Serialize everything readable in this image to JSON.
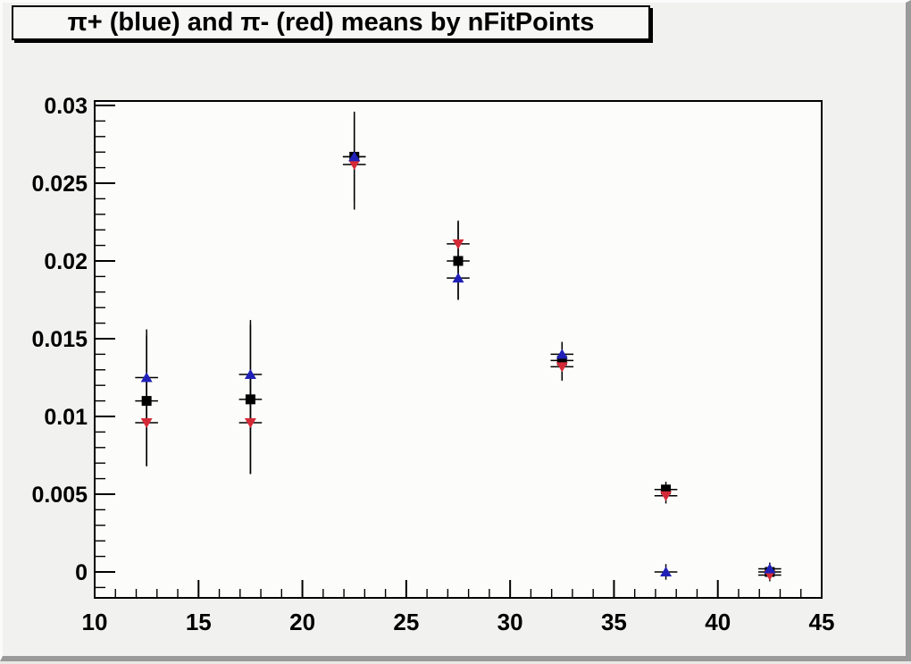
{
  "window": {
    "background": "#f1f1ef",
    "bevel_light": "#fbfbfb",
    "bevel_dark": "#9a9a9a"
  },
  "title": "π+ (blue) and π- (red) means by nFitPoints",
  "chart_data": {
    "type": "scatter",
    "title": "π+ (blue) and π- (red) means by nFitPoints",
    "xlabel": "",
    "ylabel": "",
    "xlim": [
      10,
      45
    ],
    "ylim": [
      -0.001667,
      0.030287
    ],
    "x_major_ticks": [
      10,
      15,
      20,
      25,
      30,
      35,
      40,
      45
    ],
    "x_tick_labels": [
      "10",
      "15",
      "20",
      "25",
      "30",
      "35",
      "40",
      "45"
    ],
    "x_minor_step": 1,
    "y_major_ticks": [
      0,
      0.005,
      0.01,
      0.015,
      0.02,
      0.025,
      0.03
    ],
    "y_tick_labels": [
      "0",
      "0.005",
      "0.01",
      "0.015",
      "0.02",
      "0.025",
      "0.03"
    ],
    "y_minor_step": 0.001,
    "grid": false,
    "legend": "none (colors named in title)",
    "frame_fill": "#fcfcfa",
    "frame_stroke": "#000000",
    "error_bar_color": "#000000",
    "x_error": 0.55,
    "series": [
      {
        "name": "mean (black squares)",
        "marker": "square",
        "color": "#000000",
        "points": [
          {
            "x": 12.5,
            "y": 0.011,
            "ey": 0.0042
          },
          {
            "x": 17.5,
            "y": 0.0111,
            "ey": 0.0048
          },
          {
            "x": 22.5,
            "y": 0.0267,
            "ey": 0.0029
          },
          {
            "x": 27.5,
            "y": 0.02,
            "ey": 0.0025
          },
          {
            "x": 32.5,
            "y": 0.0136,
            "ey": 0.0012
          },
          {
            "x": 37.5,
            "y": 0.0053,
            "ey": 0.0005
          },
          {
            "x": 42.5,
            "y": 0.0,
            "ey": 0.0004
          }
        ]
      },
      {
        "name": "pi-minus (red down-triangles)",
        "marker": "triangle-down",
        "color": "#d42a38",
        "points": [
          {
            "x": 12.5,
            "y": 0.0096,
            "ey": 0.0028
          },
          {
            "x": 17.5,
            "y": 0.0096,
            "ey": 0.0033
          },
          {
            "x": 22.5,
            "y": 0.0262,
            "ey": 0.0029
          },
          {
            "x": 27.5,
            "y": 0.0211,
            "ey": 0.0015
          },
          {
            "x": 32.5,
            "y": 0.0132,
            "ey": 0.0009
          },
          {
            "x": 37.5,
            "y": 0.0049,
            "ey": 0.0005
          },
          {
            "x": 42.5,
            "y": -0.0002,
            "ey": 0.0004
          }
        ]
      },
      {
        "name": "pi-plus (blue up-triangles)",
        "marker": "triangle-up",
        "color": "#2020b8",
        "points": [
          {
            "x": 12.5,
            "y": 0.0125,
            "ey": 0.0031
          },
          {
            "x": 17.5,
            "y": 0.0127,
            "ey": 0.0035
          },
          {
            "x": 22.5,
            "y": 0.0267,
            "ey": 0.0028
          },
          {
            "x": 27.5,
            "y": 0.0189,
            "ey": 0.0014
          },
          {
            "x": 32.5,
            "y": 0.014,
            "ey": 0.0007
          },
          {
            "x": 37.5,
            "y": 0.0,
            "ey": 0.0005
          },
          {
            "x": 42.5,
            "y": 0.0002,
            "ey": 0.0004
          }
        ]
      }
    ]
  }
}
